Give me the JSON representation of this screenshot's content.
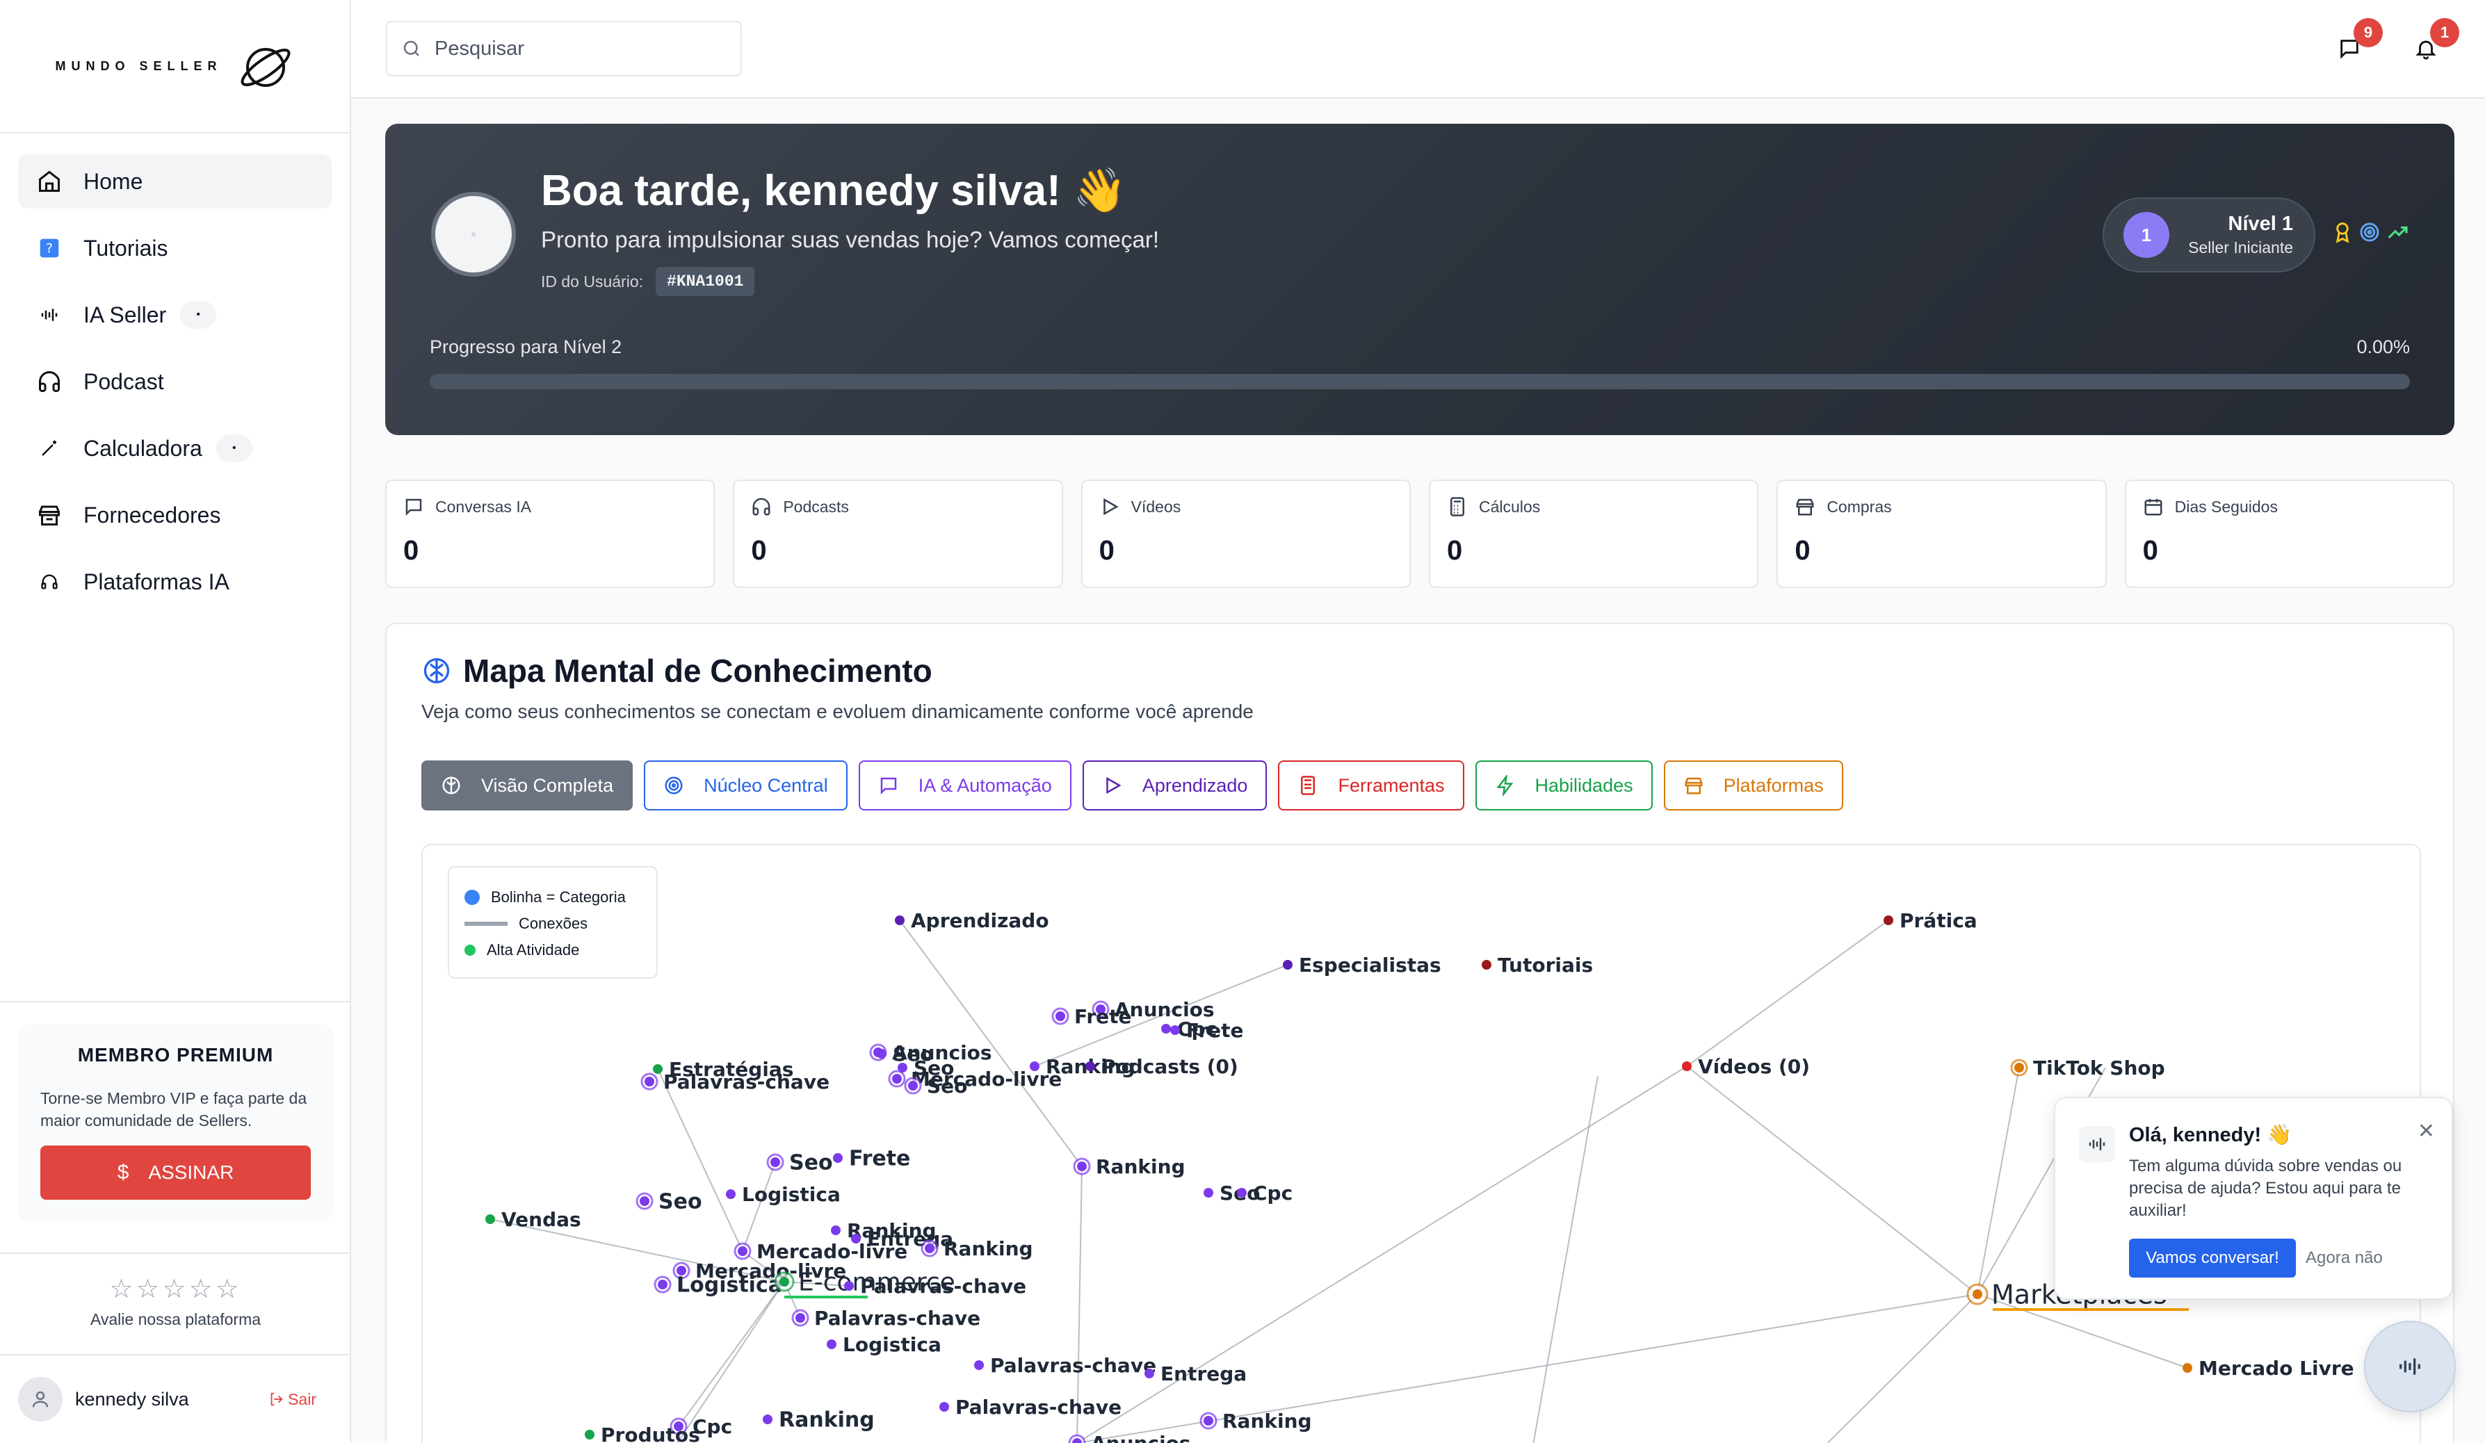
{
  "brand": {
    "name": "MUNDO SELLER"
  },
  "sidebar": {
    "items": [
      {
        "label": "Home",
        "icon": "home-icon",
        "active": true
      },
      {
        "label": "Tutoriais",
        "icon": "help-square-icon"
      },
      {
        "label": "IA Seller",
        "icon": "waveform-icon",
        "badge": "•"
      },
      {
        "label": "Podcast",
        "icon": "headphones-icon"
      },
      {
        "label": "Calculadora",
        "icon": "magic-wand-icon",
        "badge": "•"
      },
      {
        "label": "Fornecedores",
        "icon": "store-icon"
      },
      {
        "label": "Plataformas IA",
        "icon": "headset-icon"
      }
    ],
    "premium": {
      "title": "MEMBRO PREMIUM",
      "description": "Torne-se Membro VIP e faça parte da maior comunidade de Sellers.",
      "button": "ASSINAR"
    },
    "rating": {
      "stars": "☆☆☆☆☆",
      "label": "Avalie nossa plataforma"
    },
    "user": {
      "name": "kennedy silva",
      "logout": "Sair"
    }
  },
  "topbar": {
    "search_placeholder": "Pesquisar",
    "messages_count": "9",
    "notifications_count": "1"
  },
  "hero": {
    "greeting": "Boa tarde, kennedy silva! 👋",
    "subtitle": "Pronto para impulsionar suas vendas hoje? Vamos começar!",
    "id_label": "ID do Usuário:",
    "id_value": "#KNA1001",
    "level_number": "1",
    "level_title": "Nível 1",
    "level_subtitle": "Seller Iniciante",
    "progress_label": "Progresso para Nível 2",
    "progress_value": "0.00%",
    "progress_fraction": 0.0
  },
  "stats": [
    {
      "label": "Conversas IA",
      "value": "0",
      "icon": "chat-icon"
    },
    {
      "label": "Podcasts",
      "value": "0",
      "icon": "headphones-icon"
    },
    {
      "label": "Vídeos",
      "value": "0",
      "icon": "play-icon"
    },
    {
      "label": "Cálculos",
      "value": "0",
      "icon": "calculator-icon"
    },
    {
      "label": "Compras",
      "value": "0",
      "icon": "store-icon"
    },
    {
      "label": "Dias Seguidos",
      "value": "0",
      "icon": "calendar-icon"
    }
  ],
  "mindmap": {
    "title": "Mapa Mental de Conhecimento",
    "subtitle": "Veja como seus conhecimentos se conectam e evoluem dinamicamente conforme você aprende",
    "filters": [
      {
        "label": "Visão Completa",
        "color": "#6b7280",
        "active": true
      },
      {
        "label": "Núcleo Central",
        "color": "#2563eb"
      },
      {
        "label": "IA & Automação",
        "color": "#7c3aed"
      },
      {
        "label": "Aprendizado",
        "color": "#5b21b6"
      },
      {
        "label": "Ferramentas",
        "color": "#dc2626"
      },
      {
        "label": "Habilidades",
        "color": "#16a34a"
      },
      {
        "label": "Plataformas",
        "color": "#d97706"
      }
    ],
    "legend": {
      "category": "Bolinha = Categoria",
      "connections": "Conexões",
      "activity": "Alta Atividade"
    },
    "nodes": [
      {
        "label": "Aprendizado",
        "color": "#5b21b6"
      },
      {
        "label": "Especialistas",
        "color": "#5b21b6"
      },
      {
        "label": "Tutoriais",
        "color": "#991b1b"
      },
      {
        "label": "Prática",
        "color": "#991b1b"
      },
      {
        "label": "Anuncios",
        "color": "#7c3aed"
      },
      {
        "label": "Frete",
        "color": "#7c3aed"
      },
      {
        "label": "Cpc",
        "color": "#7c3aed"
      },
      {
        "label": "Frete",
        "color": "#7c3aed"
      },
      {
        "label": "Anuncios",
        "color": "#7c3aed"
      },
      {
        "label": "Seo",
        "color": "#7c3aed"
      },
      {
        "label": "Seo",
        "color": "#7c3aed"
      },
      {
        "label": "Mercado-livre",
        "color": "#7c3aed"
      },
      {
        "label": "Seo",
        "color": "#7c3aed"
      },
      {
        "label": "Ranking",
        "color": "#7c3aed"
      },
      {
        "label": "Podcasts (0)",
        "color": "#5b21b6"
      },
      {
        "label": "Vídeos (0)",
        "color": "#dc2626"
      },
      {
        "label": "TikTok Shop",
        "color": "#d97706"
      },
      {
        "label": "Estratégias",
        "color": "#16a34a"
      },
      {
        "label": "Palavras-chave",
        "color": "#7c3aed"
      },
      {
        "label": "Seo",
        "color": "#7c3aed"
      },
      {
        "label": "Frete",
        "color": "#7c3aed"
      },
      {
        "label": "Ranking",
        "color": "#7c3aed"
      },
      {
        "label": "Seo",
        "color": "#7c3aed"
      },
      {
        "label": "Cpc",
        "color": "#7c3aed"
      },
      {
        "label": "Logistica",
        "color": "#7c3aed"
      },
      {
        "label": "Seo",
        "color": "#7c3aed"
      },
      {
        "label": "Vendas",
        "color": "#16a34a"
      },
      {
        "label": "Ranking",
        "color": "#7c3aed"
      },
      {
        "label": "Entrega",
        "color": "#7c3aed"
      },
      {
        "label": "Ranking",
        "color": "#7c3aed"
      },
      {
        "label": "Mercado-livre",
        "color": "#7c3aed"
      },
      {
        "label": "Mercado-livre",
        "color": "#7c3aed"
      },
      {
        "label": "Logistica",
        "color": "#7c3aed"
      },
      {
        "label": "E-commerce",
        "color": "#16a34a"
      },
      {
        "label": "Palavras-chave",
        "color": "#7c3aed"
      },
      {
        "label": "Palavras-chave",
        "color": "#7c3aed"
      },
      {
        "label": "Logistica",
        "color": "#7c3aed"
      },
      {
        "label": "Palavras-chave",
        "color": "#7c3aed"
      },
      {
        "label": "Entrega",
        "color": "#7c3aed"
      },
      {
        "label": "Palavras-chave",
        "color": "#7c3aed"
      },
      {
        "label": "Ranking",
        "color": "#7c3aed"
      },
      {
        "label": "Ranking",
        "color": "#7c3aed"
      },
      {
        "label": "Cpc",
        "color": "#7c3aed"
      },
      {
        "label": "Produtos",
        "color": "#16a34a"
      },
      {
        "label": "Anuncios",
        "color": "#7c3aed"
      },
      {
        "label": "Marketplaces",
        "color": "#d97706"
      },
      {
        "label": "Mercado Livre",
        "color": "#d97706"
      }
    ]
  },
  "chat": {
    "title": "Olá, kennedy! 👋",
    "message": "Tem alguma dúvida sobre vendas ou precisa de ajuda? Estou aqui para te auxiliar!",
    "primary": "Vamos conversar!",
    "secondary": "Agora não"
  }
}
